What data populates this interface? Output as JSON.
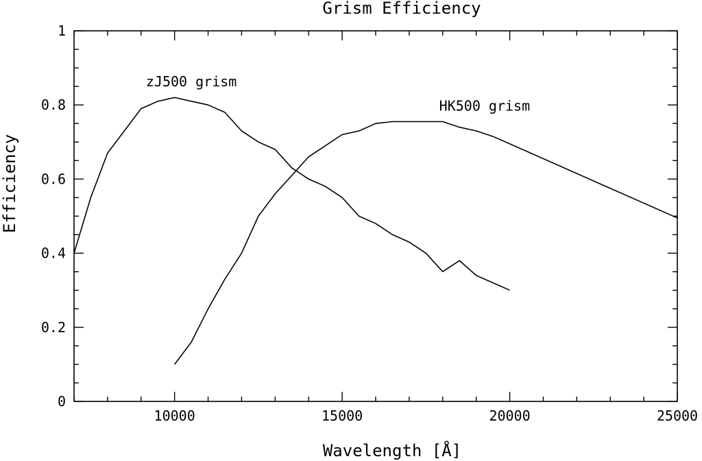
{
  "chart_data": {
    "type": "line",
    "title": "Grism Efficiency",
    "xlabel": "Wavelength [Å]",
    "ylabel": "Efficiency",
    "xlim": [
      7000,
      25000
    ],
    "ylim": [
      0,
      1
    ],
    "x_ticks": [
      10000,
      15000,
      20000,
      25000
    ],
    "x_minor_step": 1000,
    "y_ticks": [
      0,
      0.2,
      0.4,
      0.6,
      0.8,
      1
    ],
    "y_minor_step": 0.05,
    "y_tick_labels": [
      "0",
      "0.2",
      "0.4",
      "0.6",
      "0.8",
      "1"
    ],
    "grid": false,
    "series": [
      {
        "name": "zJ500 grism",
        "x": [
          7000,
          7500,
          8000,
          8500,
          9000,
          9500,
          10000,
          10500,
          11000,
          11500,
          12000,
          12500,
          13000,
          13500,
          14000,
          14500,
          15000,
          15500,
          16000,
          16500,
          17000,
          17500,
          18000,
          18500,
          19000,
          19500,
          20000
        ],
        "y": [
          0.4,
          0.55,
          0.67,
          0.73,
          0.79,
          0.81,
          0.82,
          0.81,
          0.8,
          0.78,
          0.73,
          0.7,
          0.68,
          0.63,
          0.6,
          0.58,
          0.55,
          0.5,
          0.48,
          0.45,
          0.43,
          0.4,
          0.35,
          0.38,
          0.34,
          0.32,
          0.3
        ]
      },
      {
        "name": "HK500 grism",
        "x": [
          10000,
          10500,
          11000,
          11500,
          12000,
          12500,
          13000,
          13500,
          14000,
          14500,
          15000,
          15500,
          16000,
          16500,
          17000,
          17500,
          18000,
          18500,
          19000,
          19500,
          20000,
          25000
        ],
        "y": [
          0.1,
          0.16,
          0.25,
          0.33,
          0.4,
          0.5,
          0.56,
          0.61,
          0.66,
          0.69,
          0.72,
          0.73,
          0.75,
          0.755,
          0.755,
          0.755,
          0.755,
          0.74,
          0.73,
          0.715,
          0.695,
          0.495
        ]
      }
    ],
    "annotations": [
      {
        "text": "zJ500 grism",
        "x": 10500,
        "y": 0.85
      },
      {
        "text": "HK500 grism",
        "x": 19250,
        "y": 0.785
      }
    ]
  }
}
